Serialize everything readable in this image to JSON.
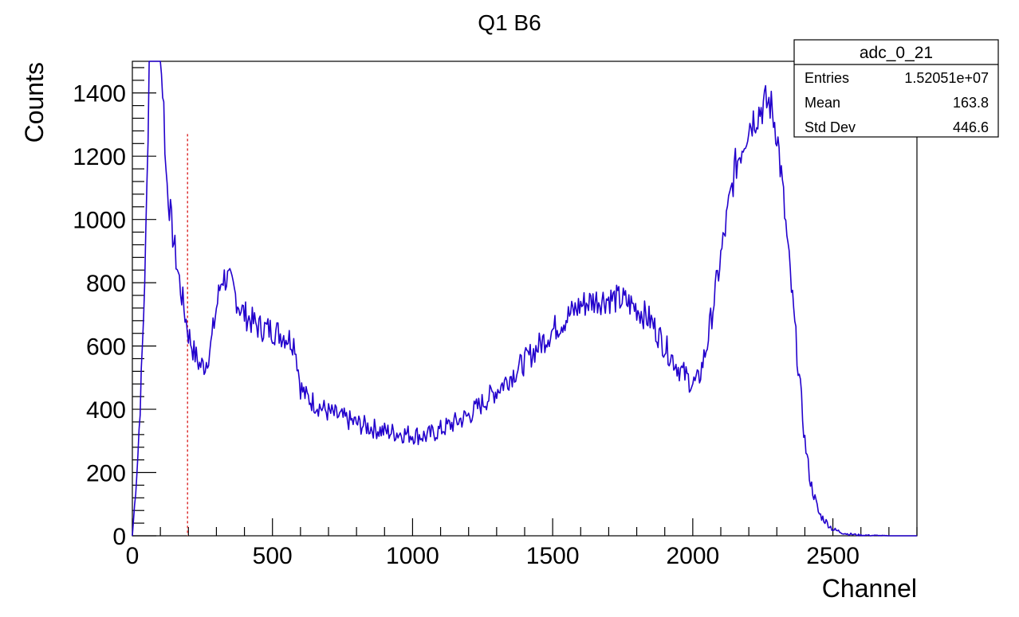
{
  "chart_data": {
    "type": "histogram",
    "title": "Q1 B6",
    "xlabel": "Channel",
    "ylabel": "Counts",
    "xlim": [
      0,
      2800
    ],
    "ylim": [
      0,
      1500
    ],
    "x_ticks": [
      0,
      500,
      1000,
      1500,
      2000,
      2500
    ],
    "x_tick_labels": [
      "0",
      "500",
      "1000",
      "1500",
      "2000",
      "2500"
    ],
    "y_ticks": [
      0,
      200,
      400,
      600,
      800,
      1000,
      1200,
      1400
    ],
    "y_tick_labels": [
      "0",
      "200",
      "400",
      "600",
      "800",
      "1000",
      "1200",
      "1400"
    ],
    "grid": false,
    "line_color": "#2200cc",
    "marker_color": "#dd3333",
    "marker": {
      "x": 197,
      "y_top": 1270
    },
    "series": [
      {
        "x": [
          0,
          10,
          20,
          30,
          40,
          50,
          60,
          80,
          100,
          110,
          120,
          140,
          160,
          180,
          200,
          220,
          240,
          260,
          280,
          300,
          320,
          340,
          360,
          380,
          400,
          450,
          500,
          550,
          580,
          600,
          620,
          650,
          700,
          800,
          900,
          1000,
          1050,
          1100,
          1200,
          1300,
          1400,
          1500,
          1600,
          1650,
          1700,
          1750,
          1800,
          1850,
          1900,
          1950,
          2000,
          2020,
          2050,
          2100,
          2150,
          2200,
          2250,
          2275,
          2300,
          2320,
          2350,
          2380,
          2400,
          2420,
          2450,
          2500,
          2550,
          2600,
          2700,
          2800
        ],
        "y": [
          0,
          120,
          260,
          450,
          700,
          1000,
          1500,
          1500,
          1500,
          1400,
          1150,
          980,
          850,
          740,
          640,
          580,
          540,
          540,
          600,
          720,
          820,
          810,
          780,
          730,
          700,
          660,
          650,
          630,
          610,
          470,
          440,
          420,
          390,
          355,
          330,
          320,
          315,
          335,
          380,
          460,
          550,
          650,
          730,
          745,
          750,
          745,
          720,
          680,
          600,
          530,
          480,
          490,
          600,
          880,
          1160,
          1300,
          1360,
          1370,
          1280,
          1100,
          800,
          500,
          300,
          170,
          70,
          20,
          6,
          2,
          0,
          0
        ]
      }
    ],
    "stats_box": {
      "name": "adc_0_21",
      "rows": [
        {
          "label": "Entries",
          "value": "1.52051e+07"
        },
        {
          "label": "Mean",
          "value": "163.8"
        },
        {
          "label": "Std Dev",
          "value": "446.6"
        }
      ]
    }
  }
}
